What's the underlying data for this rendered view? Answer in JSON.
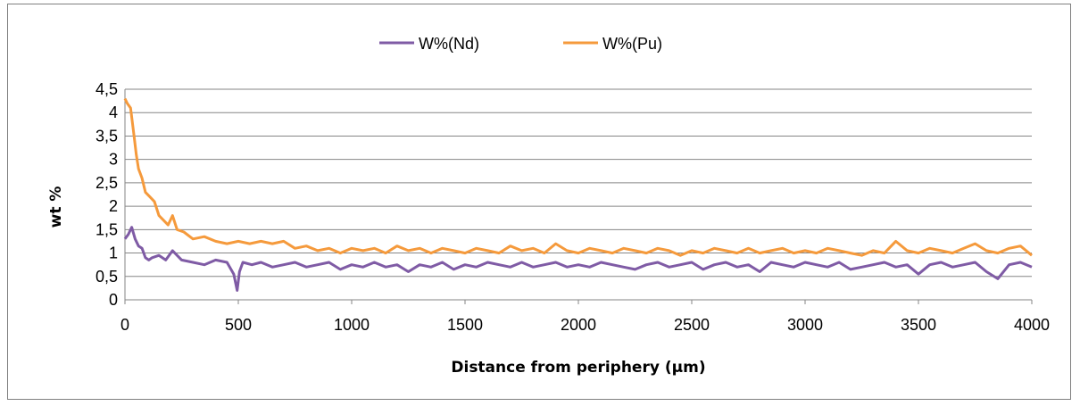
{
  "chart_data": {
    "type": "line",
    "xlabel": "Distance from periphery (µm)",
    "ylabel": "wt %",
    "xlim": [
      0,
      4000
    ],
    "ylim": [
      0,
      4.5
    ],
    "x_ticks": [
      "0",
      "500",
      "1000",
      "1500",
      "2000",
      "2500",
      "3000",
      "3500",
      "4000"
    ],
    "y_ticks": [
      "0",
      "0,5",
      "1",
      "1,5",
      "2",
      "2,5",
      "3",
      "3,5",
      "4",
      "4,5"
    ],
    "grid": "horizontal",
    "legend_position": "top-center",
    "series": [
      {
        "name": "W%(Nd)",
        "color": "#7f5ba5",
        "x": [
          0,
          15,
          30,
          45,
          60,
          75,
          90,
          105,
          120,
          150,
          180,
          210,
          250,
          300,
          350,
          400,
          450,
          480,
          495,
          505,
          520,
          560,
          600,
          650,
          700,
          750,
          800,
          850,
          900,
          950,
          1000,
          1050,
          1100,
          1150,
          1200,
          1250,
          1300,
          1350,
          1400,
          1450,
          1500,
          1550,
          1600,
          1650,
          1700,
          1750,
          1800,
          1850,
          1900,
          1950,
          2000,
          2050,
          2100,
          2150,
          2200,
          2250,
          2300,
          2350,
          2400,
          2450,
          2500,
          2550,
          2600,
          2650,
          2700,
          2750,
          2800,
          2850,
          2900,
          2950,
          3000,
          3050,
          3100,
          3150,
          3200,
          3250,
          3300,
          3350,
          3400,
          3450,
          3500,
          3550,
          3600,
          3650,
          3700,
          3750,
          3800,
          3850,
          3900,
          3950,
          4000
        ],
        "values": [
          1.3,
          1.4,
          1.55,
          1.3,
          1.15,
          1.1,
          0.9,
          0.85,
          0.9,
          0.95,
          0.85,
          1.05,
          0.85,
          0.8,
          0.75,
          0.85,
          0.8,
          0.55,
          0.2,
          0.6,
          0.8,
          0.75,
          0.8,
          0.7,
          0.75,
          0.8,
          0.7,
          0.75,
          0.8,
          0.65,
          0.75,
          0.7,
          0.8,
          0.7,
          0.75,
          0.6,
          0.75,
          0.7,
          0.8,
          0.65,
          0.75,
          0.7,
          0.8,
          0.75,
          0.7,
          0.8,
          0.7,
          0.75,
          0.8,
          0.7,
          0.75,
          0.7,
          0.8,
          0.75,
          0.7,
          0.65,
          0.75,
          0.8,
          0.7,
          0.75,
          0.8,
          0.65,
          0.75,
          0.8,
          0.7,
          0.75,
          0.6,
          0.8,
          0.75,
          0.7,
          0.8,
          0.75,
          0.7,
          0.8,
          0.65,
          0.7,
          0.75,
          0.8,
          0.7,
          0.75,
          0.55,
          0.75,
          0.8,
          0.7,
          0.75,
          0.8,
          0.6,
          0.45,
          0.75,
          0.8,
          0.7
        ]
      },
      {
        "name": "W%(Pu)",
        "color": "#f59a3c",
        "x": [
          0,
          10,
          25,
          40,
          50,
          60,
          75,
          90,
          110,
          130,
          150,
          170,
          190,
          210,
          230,
          260,
          300,
          350,
          400,
          450,
          500,
          550,
          600,
          650,
          700,
          750,
          800,
          850,
          900,
          950,
          1000,
          1050,
          1100,
          1150,
          1200,
          1250,
          1300,
          1350,
          1400,
          1450,
          1500,
          1550,
          1600,
          1650,
          1700,
          1750,
          1800,
          1850,
          1900,
          1950,
          2000,
          2050,
          2100,
          2150,
          2200,
          2250,
          2300,
          2350,
          2400,
          2450,
          2500,
          2550,
          2600,
          2650,
          2700,
          2750,
          2800,
          2850,
          2900,
          2950,
          3000,
          3050,
          3100,
          3150,
          3200,
          3250,
          3300,
          3350,
          3400,
          3450,
          3500,
          3550,
          3600,
          3650,
          3700,
          3750,
          3800,
          3850,
          3900,
          3950,
          4000
        ],
        "values": [
          4.3,
          4.2,
          4.1,
          3.5,
          3.1,
          2.8,
          2.6,
          2.3,
          2.2,
          2.1,
          1.8,
          1.7,
          1.6,
          1.8,
          1.5,
          1.45,
          1.3,
          1.35,
          1.25,
          1.2,
          1.25,
          1.2,
          1.25,
          1.2,
          1.25,
          1.1,
          1.15,
          1.05,
          1.1,
          1.0,
          1.1,
          1.05,
          1.1,
          1.0,
          1.15,
          1.05,
          1.1,
          1.0,
          1.1,
          1.05,
          1.0,
          1.1,
          1.05,
          1.0,
          1.15,
          1.05,
          1.1,
          1.0,
          1.2,
          1.05,
          1.0,
          1.1,
          1.05,
          1.0,
          1.1,
          1.05,
          1.0,
          1.1,
          1.05,
          0.95,
          1.05,
          1.0,
          1.1,
          1.05,
          1.0,
          1.1,
          1.0,
          1.05,
          1.1,
          1.0,
          1.05,
          1.0,
          1.1,
          1.05,
          1.0,
          0.95,
          1.05,
          1.0,
          1.25,
          1.05,
          1.0,
          1.1,
          1.05,
          1.0,
          1.1,
          1.2,
          1.05,
          1.0,
          1.1,
          1.15,
          0.95
        ]
      }
    ]
  }
}
